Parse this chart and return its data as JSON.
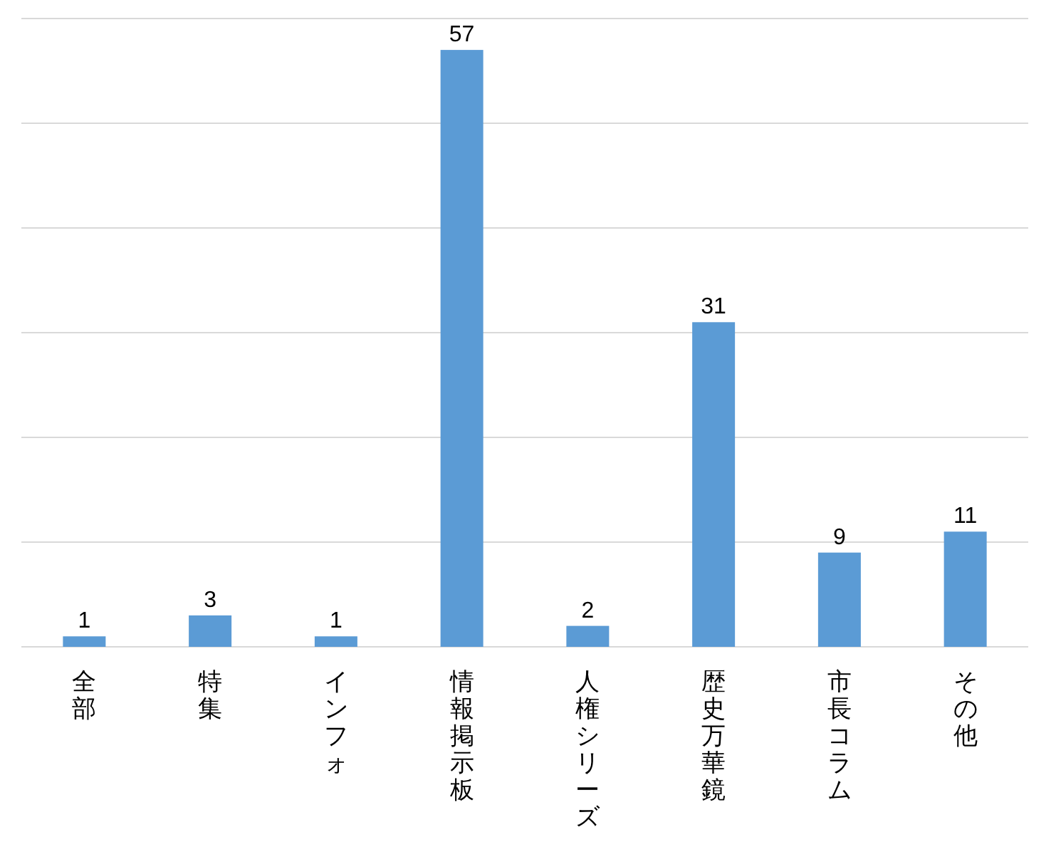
{
  "chart_data": {
    "type": "bar",
    "categories": [
      "全部",
      "特集",
      "インフォ",
      "情報掲示板",
      "人権シリーズ",
      "歴史万華鏡",
      "市長コラム",
      "その他"
    ],
    "values": [
      1,
      3,
      1,
      57,
      2,
      31,
      9,
      11
    ],
    "color": "#5b9bd5",
    "ylim": [
      0,
      60
    ],
    "yticks": [
      {
        "value": 0,
        "label": null
      },
      {
        "value": 10,
        "label": null
      },
      {
        "value": 20,
        "label": null
      },
      {
        "value": 30,
        "label": null
      },
      {
        "value": 40,
        "label": null
      },
      {
        "value": 50,
        "label": null
      },
      {
        "value": 60,
        "label": null
      }
    ],
    "grid": "y",
    "tick_labels": "x",
    "data_labels": true
  }
}
